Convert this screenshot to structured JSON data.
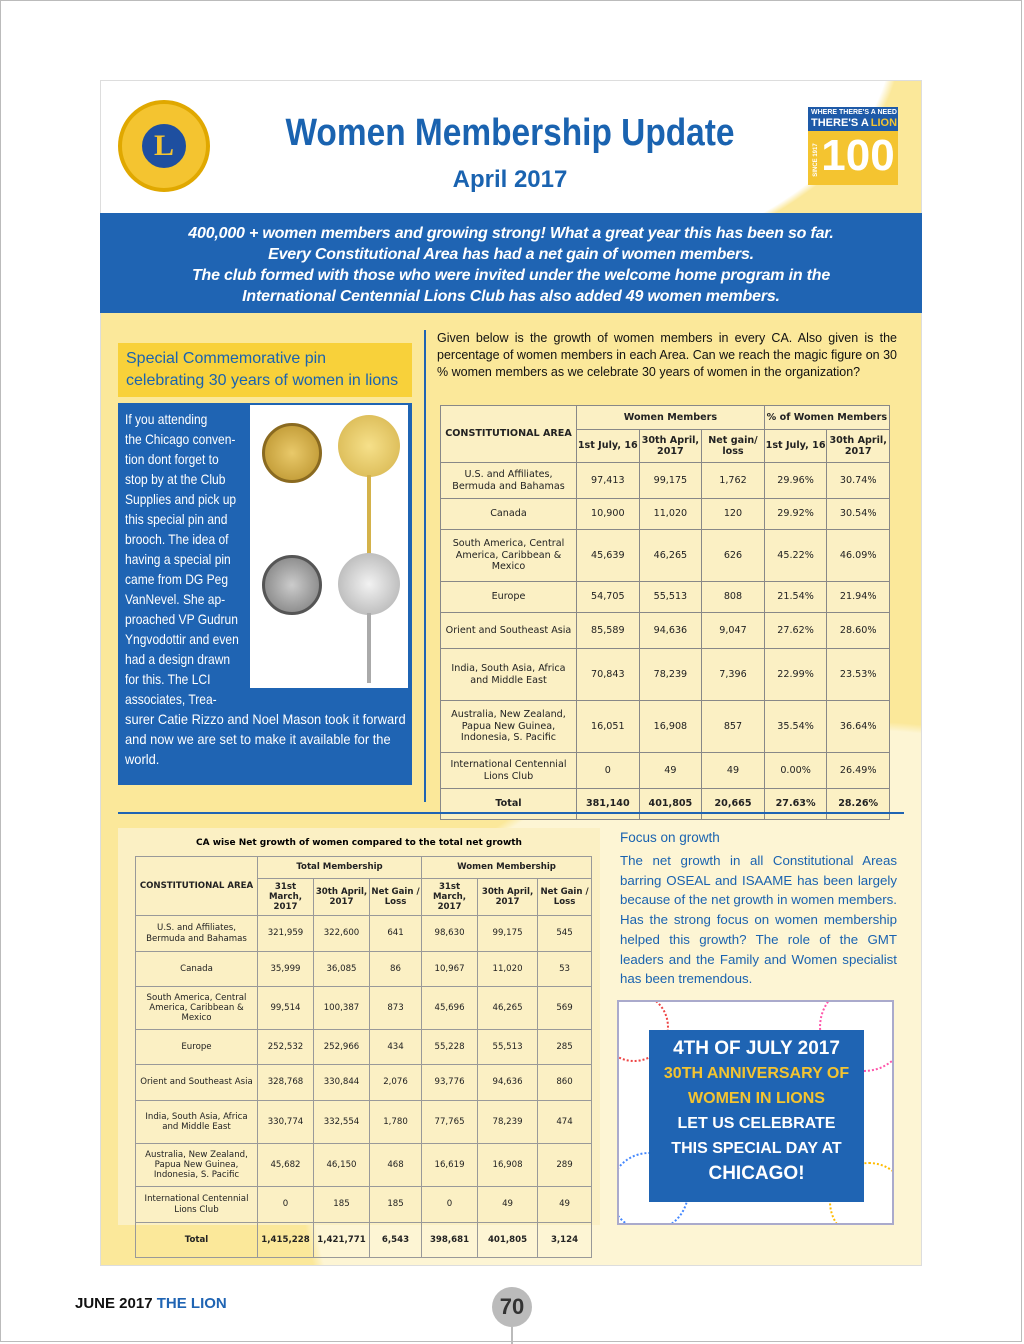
{
  "header": {
    "title": "Women Membership Update",
    "subtitle": "April 2017",
    "logo_text": "LIONS INTERNATIONAL",
    "centennial_top": "WHERE THERE'S A NEED",
    "centennial_mid": "THERE'S A",
    "centennial_lion": "LION",
    "centennial_num": "100",
    "centennial_since": "SINCE 1917"
  },
  "banner": {
    "lines": [
      "400,000 + women members and growing strong! What a great year this has been so far.",
      "Every Constitutional Area has had a net gain of women members.",
      "The club formed with those who were invited under the welcome home program in the",
      "International Centennial Lions Club has also added 49 women members."
    ]
  },
  "pin": {
    "heading": "Special Commemorative pin celebrating 30 years of women in lions",
    "text_narrow": [
      "If you attending",
      "the Chicago conven-",
      "tion dont forget to",
      "stop by at the Club",
      "Supplies and pick up",
      "this special pin and",
      "brooch. The idea of",
      "having a special pin",
      "came from DG Peg",
      "VanNevel. She ap-",
      "proached VP Gudrun",
      "Yngvodottir and even",
      "had a design drawn",
      "for this. The LCI",
      "associates, Trea-"
    ],
    "text_wide": [
      "surer Catie Rizzo and Noel Mason took it forward",
      "and now we are set to make it available for the",
      "world."
    ]
  },
  "intro": "Given below is the growth of women members in every CA. Also given is the percentage of women members in each Area. Can we reach the magic figure on 30 % women members as we celebrate 30 years of women in the organization?",
  "table1": {
    "area_header": "CONSTITUTIONAL AREA",
    "group1": "Women Members",
    "group2": "% of Women Members",
    "cols": [
      "1st July, 16",
      "30th April, 2017",
      "Net gain/ loss",
      "1st July, 16",
      "30th April, 2017"
    ],
    "rows": [
      [
        "U.S. and Affiliates, Bermuda and Bahamas",
        "97,413",
        "99,175",
        "1,762",
        "29.96%",
        "30.74%"
      ],
      [
        "Canada",
        "10,900",
        "11,020",
        "120",
        "29.92%",
        "30.54%"
      ],
      [
        "South America, Central America, Caribbean & Mexico",
        "45,639",
        "46,265",
        "626",
        "45.22%",
        "46.09%"
      ],
      [
        "Europe",
        "54,705",
        "55,513",
        "808",
        "21.54%",
        "21.94%"
      ],
      [
        "Orient and Southeast Asia",
        "85,589",
        "94,636",
        "9,047",
        "27.62%",
        "28.60%"
      ],
      [
        "India, South Asia, Africa and Middle East",
        "70,843",
        "78,239",
        "7,396",
        "22.99%",
        "23.53%"
      ],
      [
        "Australia, New Zealand, Papua New Guinea, Indonesia, S. Pacific",
        "16,051",
        "16,908",
        "857",
        "35.54%",
        "36.64%"
      ],
      [
        "International Centennial Lions Club",
        "0",
        "49",
        "49",
        "0.00%",
        "26.49%"
      ],
      [
        "Total",
        "381,140",
        "401,805",
        "20,665",
        "27.63%",
        "28.26%"
      ]
    ]
  },
  "table2": {
    "title": "CA wise Net growth of women compared to the total net growth",
    "area_header": "CONSTITUTIONAL AREA",
    "group1": "Total Membership",
    "group2": "Women Membership",
    "cols": [
      "31st March, 2017",
      "30th April, 2017",
      "Net Gain / Loss",
      "31st March, 2017",
      "30th April, 2017",
      "Net Gain / Loss"
    ],
    "rows": [
      [
        "U.S. and Affiliates, Bermuda and Bahamas",
        "321,959",
        "322,600",
        "641",
        "98,630",
        "99,175",
        "545"
      ],
      [
        "Canada",
        "35,999",
        "36,085",
        "86",
        "10,967",
        "11,020",
        "53"
      ],
      [
        "South America, Central America, Caribbean & Mexico",
        "99,514",
        "100,387",
        "873",
        "45,696",
        "46,265",
        "569"
      ],
      [
        "Europe",
        "252,532",
        "252,966",
        "434",
        "55,228",
        "55,513",
        "285"
      ],
      [
        "Orient and Southeast Asia",
        "328,768",
        "330,844",
        "2,076",
        "93,776",
        "94,636",
        "860"
      ],
      [
        "India, South Asia, Africa and Middle East",
        "330,774",
        "332,554",
        "1,780",
        "77,765",
        "78,239",
        "474"
      ],
      [
        "Australia, New Zealand, Papua New Guinea, Indonesia, S. Pacific",
        "45,682",
        "46,150",
        "468",
        "16,619",
        "16,908",
        "289"
      ],
      [
        "International Centennial Lions Club",
        "0",
        "185",
        "185",
        "0",
        "49",
        "49"
      ],
      [
        "Total",
        "1,415,228",
        "1,421,771",
        "6,543",
        "398,681",
        "401,805",
        "3,124"
      ]
    ]
  },
  "focus": {
    "heading": "Focus on growth",
    "text": "The net growth in all Constitutional Areas barring OSEAL and ISAAME has been largely because of the net growth in women members. Has the strong focus on women membership helped this growth? The role of the GMT leaders and the Family and Women specialist has been tremendous."
  },
  "poster": {
    "line1": "4TH OF JULY 2017",
    "line2": "30TH ANNIVERSARY OF",
    "line3": "WOMEN IN LIONS",
    "line4": "LET US CELEBRATE",
    "line5": "THIS SPECIAL DAY AT",
    "line6": "CHICAGO!"
  },
  "footer": {
    "date": "JUNE 2017",
    "magazine": "THE LION",
    "page": "70"
  }
}
